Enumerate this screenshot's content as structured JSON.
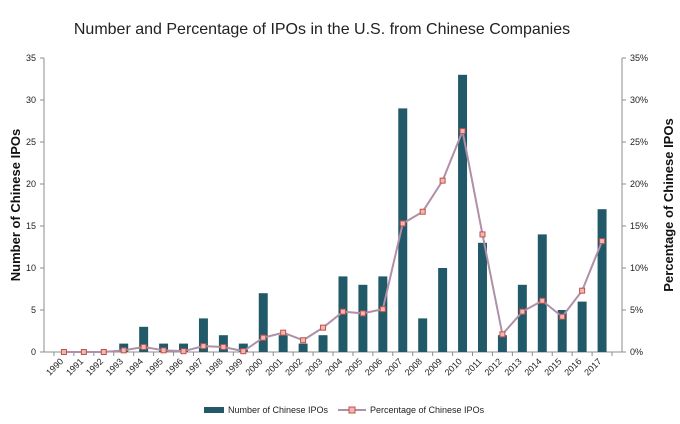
{
  "colors": {
    "bar": "#215968",
    "line": "#B08FA8",
    "marker_fill": "#F2B8B0",
    "marker_stroke": "#C0504D",
    "axis": "#8c8c8c"
  },
  "chart_data": {
    "type": "bar+line",
    "title": "Number and Percentage of  IPOs in the U.S. from Chinese Companies",
    "ylabel_left": "Number of Chinese IPOs",
    "ylabel_right": "Percentage of Chinese IPOs",
    "categories": [
      "1990",
      "1991",
      "1992",
      "1993",
      "1994",
      "1995",
      "1996",
      "1997",
      "1998",
      "1999",
      "2000",
      "2001",
      "2002",
      "2003",
      "2004",
      "2005",
      "2006",
      "2007",
      "2008",
      "2009",
      "2010",
      "2011",
      "2012",
      "2013",
      "2014",
      "2015",
      "2016",
      "2017"
    ],
    "ylim_left": [
      0,
      35
    ],
    "yticks_left": [
      "0",
      "5",
      "10",
      "15",
      "20",
      "25",
      "30",
      "35"
    ],
    "ylim_right": [
      0,
      35
    ],
    "yticks_right": [
      "0%",
      "5%",
      "10%",
      "15%",
      "20%",
      "25%",
      "30%",
      "35%"
    ],
    "series": [
      {
        "name": "Number of Chinese IPOs",
        "kind": "bar",
        "values": [
          0,
          0,
          0,
          1,
          3,
          1,
          1,
          4,
          2,
          1,
          7,
          2,
          1,
          2,
          9,
          8,
          9,
          29,
          4,
          10,
          33,
          13,
          2,
          8,
          14,
          5,
          6,
          17
        ]
      },
      {
        "name": "Percentage of Chinese IPOs",
        "kind": "line",
        "values": [
          0,
          0,
          0,
          0.2,
          0.6,
          0.2,
          0.1,
          0.7,
          0.6,
          0.1,
          1.7,
          2.3,
          1.4,
          2.9,
          4.8,
          4.6,
          5.1,
          15.3,
          16.7,
          20.4,
          26.3,
          14,
          2.1,
          4.8,
          6.1,
          4.2,
          7.3,
          13.2
        ]
      }
    ]
  }
}
